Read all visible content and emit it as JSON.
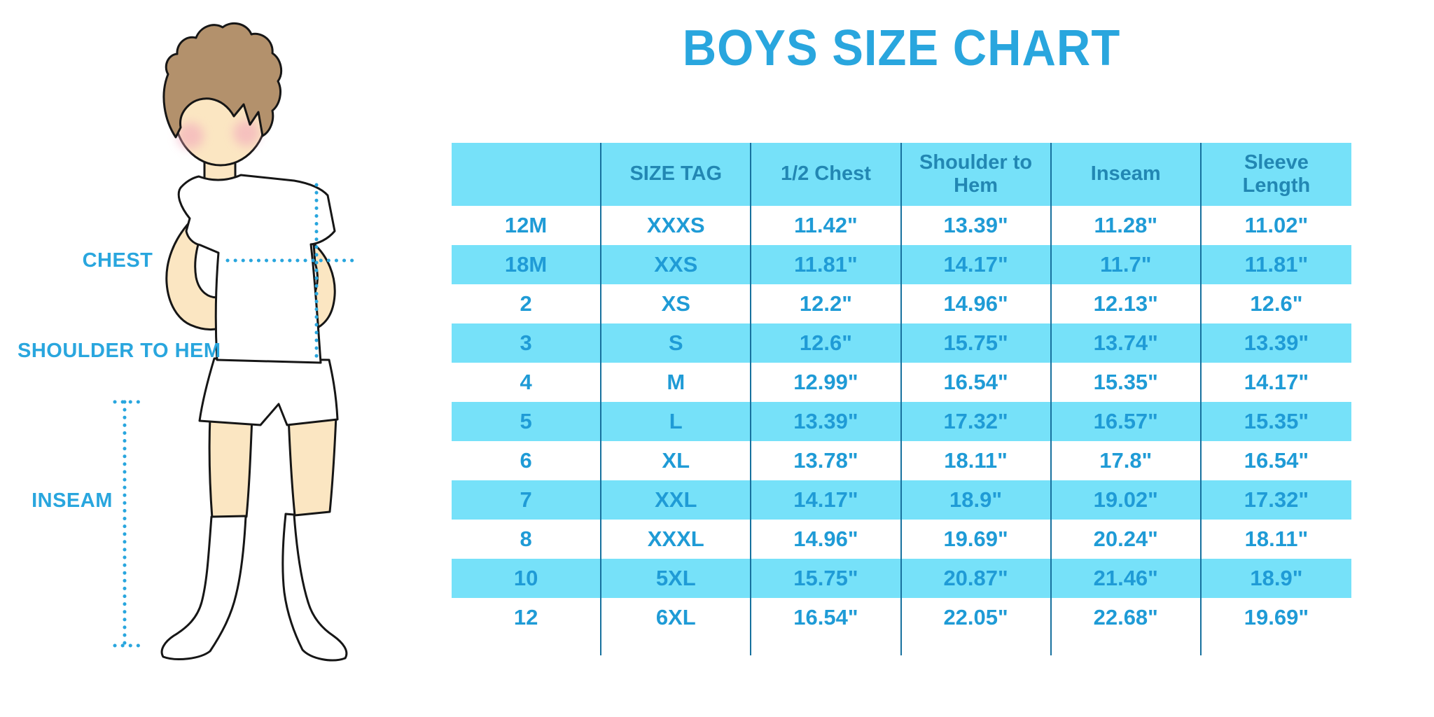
{
  "title": "BOYS SIZE CHART",
  "diagram": {
    "chest_label": "CHEST",
    "shoulder_to_hem_label": "SHOULDER TO HEM",
    "inseam_label": "INSEAM",
    "illustration": "boy-in-tshirt-shorts-and-knee-socks"
  },
  "colors": {
    "accent": "#29a6de",
    "table_fill_cyan": "#76e1f9",
    "header_text": "#2287b3",
    "cell_text": "#1f9bd6",
    "grid_line": "#17719e",
    "skin": "#fbe6c2",
    "hair": "#b3916c",
    "cheek": "#f2a8bc"
  },
  "chart_data": {
    "type": "table",
    "title": "BOYS SIZE CHART",
    "columns": [
      "",
      "SIZE TAG",
      "1/2 Chest",
      "Shoulder to Hem",
      "Inseam",
      "Sleeve Length"
    ],
    "rows": [
      [
        "12M",
        "XXXS",
        "11.42\"",
        "13.39\"",
        "11.28\"",
        "11.02\""
      ],
      [
        "18M",
        "XXS",
        "11.81\"",
        "14.17\"",
        "11.7\"",
        "11.81\""
      ],
      [
        "2",
        "XS",
        "12.2\"",
        "14.96\"",
        "12.13\"",
        "12.6\""
      ],
      [
        "3",
        "S",
        "12.6\"",
        "15.75\"",
        "13.74\"",
        "13.39\""
      ],
      [
        "4",
        "M",
        "12.99\"",
        "16.54\"",
        "15.35\"",
        "14.17\""
      ],
      [
        "5",
        "L",
        "13.39\"",
        "17.32\"",
        "16.57\"",
        "15.35\""
      ],
      [
        "6",
        "XL",
        "13.78\"",
        "18.11\"",
        "17.8\"",
        "16.54\""
      ],
      [
        "7",
        "XXL",
        "14.17\"",
        "18.9\"",
        "19.02\"",
        "17.32\""
      ],
      [
        "8",
        "XXXL",
        "14.96\"",
        "19.69\"",
        "20.24\"",
        "18.11\""
      ],
      [
        "10",
        "5XL",
        "15.75\"",
        "20.87\"",
        "21.46\"",
        "18.9\""
      ],
      [
        "12",
        "6XL",
        "16.54\"",
        "22.05\"",
        "22.68\"",
        "19.69\""
      ]
    ],
    "alternating_row_fill": "white / cyan",
    "grid": "vertical column separators only"
  }
}
